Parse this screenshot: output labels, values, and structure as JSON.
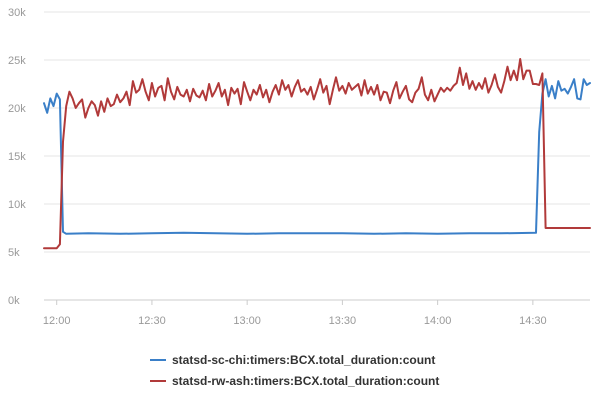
{
  "chart_data": {
    "type": "line",
    "xlabel": "",
    "ylabel": "",
    "x_range": [
      "11:56",
      "14:48"
    ],
    "x_ticks": [
      "12:00",
      "12:30",
      "13:00",
      "13:30",
      "14:00",
      "14:30"
    ],
    "ylim": [
      0,
      30000
    ],
    "y_ticks": [
      0,
      5000,
      10000,
      15000,
      20000,
      25000,
      30000
    ],
    "y_tick_labels": [
      "0k",
      "5k",
      "10k",
      "15k",
      "20k",
      "25k",
      "30k"
    ],
    "grid": "horizontal",
    "legend_position": "bottom",
    "series": [
      {
        "name": "statsd-sc-chi:timers:BCX.total_duration:count",
        "color": "#3a7fc8",
        "points": [
          [
            "11:56",
            20500
          ],
          [
            "11:57",
            19500
          ],
          [
            "11:58",
            21000
          ],
          [
            "11:59",
            20200
          ],
          [
            "12:00",
            21500
          ],
          [
            "12:01",
            20900
          ],
          [
            "12:02",
            7100
          ],
          [
            "12:03",
            6900
          ],
          [
            "12:10",
            6950
          ],
          [
            "12:20",
            6900
          ],
          [
            "12:30",
            6950
          ],
          [
            "12:40",
            7000
          ],
          [
            "12:50",
            6950
          ],
          [
            "13:00",
            6900
          ],
          [
            "13:10",
            6950
          ],
          [
            "13:20",
            6950
          ],
          [
            "13:30",
            6950
          ],
          [
            "13:40",
            6900
          ],
          [
            "13:50",
            6950
          ],
          [
            "14:00",
            6900
          ],
          [
            "14:10",
            6950
          ],
          [
            "14:20",
            6950
          ],
          [
            "14:31",
            7000
          ],
          [
            "14:32",
            17500
          ],
          [
            "14:33",
            21500
          ],
          [
            "14:34",
            23000
          ],
          [
            "14:35",
            21200
          ],
          [
            "14:36",
            22300
          ],
          [
            "14:37",
            21000
          ],
          [
            "14:38",
            22800
          ],
          [
            "14:39",
            21800
          ],
          [
            "14:40",
            22000
          ],
          [
            "14:41",
            21500
          ],
          [
            "14:42",
            22200
          ],
          [
            "14:43",
            23000
          ],
          [
            "14:44",
            21000
          ],
          [
            "14:45",
            20900
          ],
          [
            "14:46",
            23000
          ],
          [
            "14:47",
            22400
          ],
          [
            "14:48",
            22600
          ]
        ]
      },
      {
        "name": "statsd-rw-ash:timers:BCX.total_duration:count",
        "color": "#b13a3a",
        "points": [
          [
            "11:56",
            5400
          ],
          [
            "11:58",
            5400
          ],
          [
            "12:00",
            5400
          ],
          [
            "12:01",
            5800
          ],
          [
            "12:02",
            16500
          ],
          [
            "12:03",
            20200
          ],
          [
            "12:04",
            21700
          ],
          [
            "12:05",
            21000
          ],
          [
            "12:06",
            20000
          ],
          [
            "12:07",
            20500
          ],
          [
            "12:08",
            20900
          ],
          [
            "12:09",
            19000
          ],
          [
            "12:10",
            20000
          ],
          [
            "12:11",
            20700
          ],
          [
            "12:12",
            20300
          ],
          [
            "12:13",
            19200
          ],
          [
            "12:14",
            20700
          ],
          [
            "12:15",
            19600
          ],
          [
            "12:16",
            21000
          ],
          [
            "12:17",
            20200
          ],
          [
            "12:18",
            20400
          ],
          [
            "12:19",
            21400
          ],
          [
            "12:20",
            20600
          ],
          [
            "12:21",
            21000
          ],
          [
            "12:22",
            21700
          ],
          [
            "12:23",
            20300
          ],
          [
            "12:24",
            22800
          ],
          [
            "12:25",
            21600
          ],
          [
            "12:26",
            21900
          ],
          [
            "12:27",
            23000
          ],
          [
            "12:28",
            21700
          ],
          [
            "12:29",
            20800
          ],
          [
            "12:30",
            22600
          ],
          [
            "12:31",
            21200
          ],
          [
            "12:32",
            22100
          ],
          [
            "12:33",
            22300
          ],
          [
            "12:34",
            20800
          ],
          [
            "12:35",
            23100
          ],
          [
            "12:36",
            21700
          ],
          [
            "12:37",
            20900
          ],
          [
            "12:38",
            22200
          ],
          [
            "12:39",
            21400
          ],
          [
            "12:40",
            21200
          ],
          [
            "12:41",
            21900
          ],
          [
            "12:42",
            20700
          ],
          [
            "12:43",
            22000
          ],
          [
            "12:44",
            21300
          ],
          [
            "12:45",
            21100
          ],
          [
            "12:46",
            21800
          ],
          [
            "12:47",
            20800
          ],
          [
            "12:48",
            22500
          ],
          [
            "12:49",
            21200
          ],
          [
            "12:50",
            21800
          ],
          [
            "12:51",
            22600
          ],
          [
            "12:52",
            21200
          ],
          [
            "12:53",
            21900
          ],
          [
            "12:54",
            20300
          ],
          [
            "12:55",
            22100
          ],
          [
            "12:56",
            21500
          ],
          [
            "12:57",
            22000
          ],
          [
            "12:58",
            20400
          ],
          [
            "12:59",
            22700
          ],
          [
            "13:00",
            21700
          ],
          [
            "13:01",
            20800
          ],
          [
            "13:02",
            21900
          ],
          [
            "13:03",
            21400
          ],
          [
            "13:04",
            22400
          ],
          [
            "13:05",
            21100
          ],
          [
            "13:06",
            21900
          ],
          [
            "13:07",
            20600
          ],
          [
            "13:08",
            21700
          ],
          [
            "13:09",
            22400
          ],
          [
            "13:10",
            21400
          ],
          [
            "13:11",
            22900
          ],
          [
            "13:12",
            21900
          ],
          [
            "13:13",
            22400
          ],
          [
            "13:14",
            21200
          ],
          [
            "13:15",
            22200
          ],
          [
            "13:16",
            22900
          ],
          [
            "13:17",
            21700
          ],
          [
            "13:18",
            22000
          ],
          [
            "13:19",
            21400
          ],
          [
            "13:20",
            22200
          ],
          [
            "13:21",
            20900
          ],
          [
            "13:22",
            21900
          ],
          [
            "13:23",
            23000
          ],
          [
            "13:24",
            21600
          ],
          [
            "13:25",
            22300
          ],
          [
            "13:26",
            20400
          ],
          [
            "13:27",
            21900
          ],
          [
            "13:28",
            23200
          ],
          [
            "13:29",
            21800
          ],
          [
            "13:30",
            22300
          ],
          [
            "13:31",
            21500
          ],
          [
            "13:32",
            22600
          ],
          [
            "13:33",
            21900
          ],
          [
            "13:34",
            22200
          ],
          [
            "13:35",
            22500
          ],
          [
            "13:36",
            21300
          ],
          [
            "13:37",
            22900
          ],
          [
            "13:38",
            21500
          ],
          [
            "13:39",
            22200
          ],
          [
            "13:40",
            21400
          ],
          [
            "13:41",
            22400
          ],
          [
            "13:42",
            20800
          ],
          [
            "13:43",
            21700
          ],
          [
            "13:44",
            21600
          ],
          [
            "13:45",
            20500
          ],
          [
            "13:46",
            21800
          ],
          [
            "13:47",
            22700
          ],
          [
            "13:48",
            21000
          ],
          [
            "13:49",
            21700
          ],
          [
            "13:50",
            22300
          ],
          [
            "13:51",
            20900
          ],
          [
            "13:52",
            20600
          ],
          [
            "13:53",
            21600
          ],
          [
            "13:54",
            22000
          ],
          [
            "13:55",
            23200
          ],
          [
            "13:56",
            21400
          ],
          [
            "13:57",
            20800
          ],
          [
            "13:58",
            21900
          ],
          [
            "13:59",
            20700
          ],
          [
            "14:00",
            21400
          ],
          [
            "14:01",
            22100
          ],
          [
            "14:02",
            21700
          ],
          [
            "14:03",
            22100
          ],
          [
            "14:04",
            21800
          ],
          [
            "14:05",
            22300
          ],
          [
            "14:06",
            22600
          ],
          [
            "14:07",
            24200
          ],
          [
            "14:08",
            22400
          ],
          [
            "14:09",
            23600
          ],
          [
            "14:10",
            22000
          ],
          [
            "14:11",
            22800
          ],
          [
            "14:12",
            21900
          ],
          [
            "14:13",
            22600
          ],
          [
            "14:14",
            22000
          ],
          [
            "14:15",
            23100
          ],
          [
            "14:16",
            21600
          ],
          [
            "14:17",
            22400
          ],
          [
            "14:18",
            23500
          ],
          [
            "14:19",
            22200
          ],
          [
            "14:20",
            21600
          ],
          [
            "14:21",
            22800
          ],
          [
            "14:22",
            24300
          ],
          [
            "14:23",
            22900
          ],
          [
            "14:24",
            23900
          ],
          [
            "14:25",
            22900
          ],
          [
            "14:26",
            25100
          ],
          [
            "14:27",
            23000
          ],
          [
            "14:28",
            23900
          ],
          [
            "14:29",
            23900
          ],
          [
            "14:30",
            22500
          ],
          [
            "14:31",
            22500
          ],
          [
            "14:32",
            22400
          ],
          [
            "14:33",
            23600
          ],
          [
            "14:34",
            7500
          ],
          [
            "14:40",
            7500
          ],
          [
            "14:48",
            7500
          ]
        ]
      }
    ]
  }
}
